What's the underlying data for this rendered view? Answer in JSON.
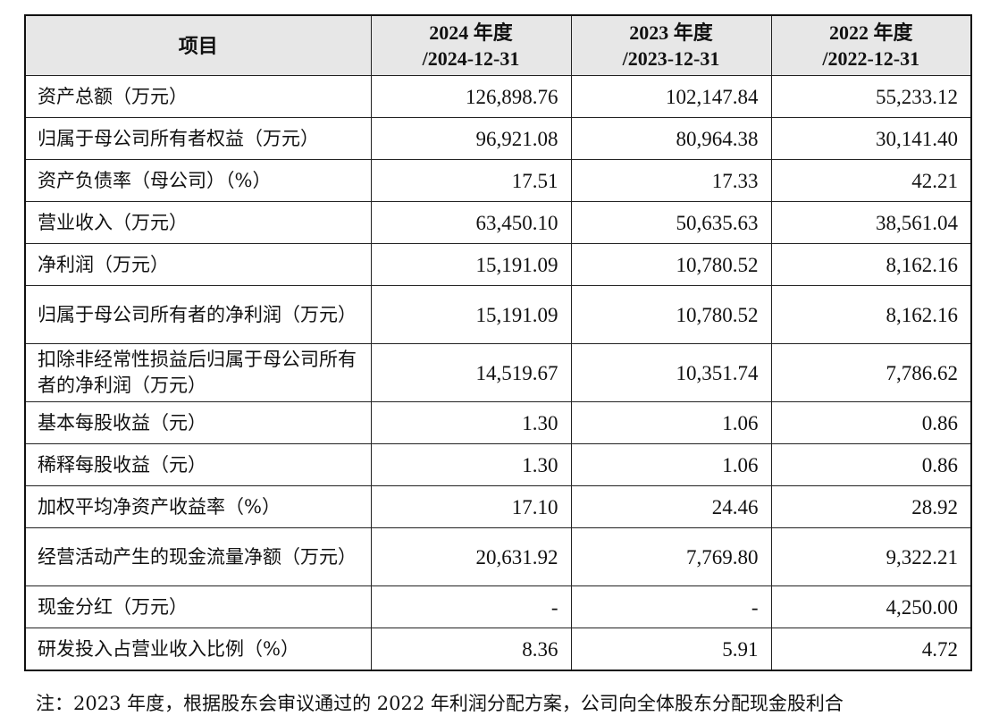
{
  "table": {
    "headers": [
      {
        "line1": "项目",
        "line2": ""
      },
      {
        "line1": "2024 年度",
        "line2": "/2024-12-31"
      },
      {
        "line1": "2023 年度",
        "line2": "/2023-12-31"
      },
      {
        "line1": "2022 年度",
        "line2": "/2022-12-31"
      }
    ],
    "rows": [
      {
        "label": "资产总额（万元）",
        "v2024": "126,898.76",
        "v2023": "102,147.84",
        "v2022": "55,233.12"
      },
      {
        "label": "归属于母公司所有者权益（万元）",
        "v2024": "96,921.08",
        "v2023": "80,964.38",
        "v2022": "30,141.40"
      },
      {
        "label": "资产负债率（母公司）（%）",
        "v2024": "17.51",
        "v2023": "17.33",
        "v2022": "42.21"
      },
      {
        "label": "营业收入（万元）",
        "v2024": "63,450.10",
        "v2023": "50,635.63",
        "v2022": "38,561.04"
      },
      {
        "label": "净利润（万元）",
        "v2024": "15,191.09",
        "v2023": "10,780.52",
        "v2022": "8,162.16"
      },
      {
        "label": "归属于母公司所有者的净利润（万元）",
        "v2024": "15,191.09",
        "v2023": "10,780.52",
        "v2022": "8,162.16"
      },
      {
        "label": "扣除非经常性损益后归属于母公司所有者的净利润（万元）",
        "v2024": "14,519.67",
        "v2023": "10,351.74",
        "v2022": "7,786.62"
      },
      {
        "label": "基本每股收益（元）",
        "v2024": "1.30",
        "v2023": "1.06",
        "v2022": "0.86"
      },
      {
        "label": "稀释每股收益（元）",
        "v2024": "1.30",
        "v2023": "1.06",
        "v2022": "0.86"
      },
      {
        "label": "加权平均净资产收益率（%）",
        "v2024": "17.10",
        "v2023": "24.46",
        "v2022": "28.92"
      },
      {
        "label": "经营活动产生的现金流量净额（万元）",
        "v2024": "20,631.92",
        "v2023": "7,769.80",
        "v2022": "9,322.21"
      },
      {
        "label": "现金分红（万元）",
        "v2024": "-",
        "v2023": "-",
        "v2022": "4,250.00"
      },
      {
        "label": "研发投入占营业收入比例（%）",
        "v2024": "8.36",
        "v2023": "5.91",
        "v2022": "4.72"
      }
    ]
  },
  "footnote": "注：2023 年度，根据股东会审议通过的 2022 年利润分配方案，公司向全体股东分配现金股利合"
}
